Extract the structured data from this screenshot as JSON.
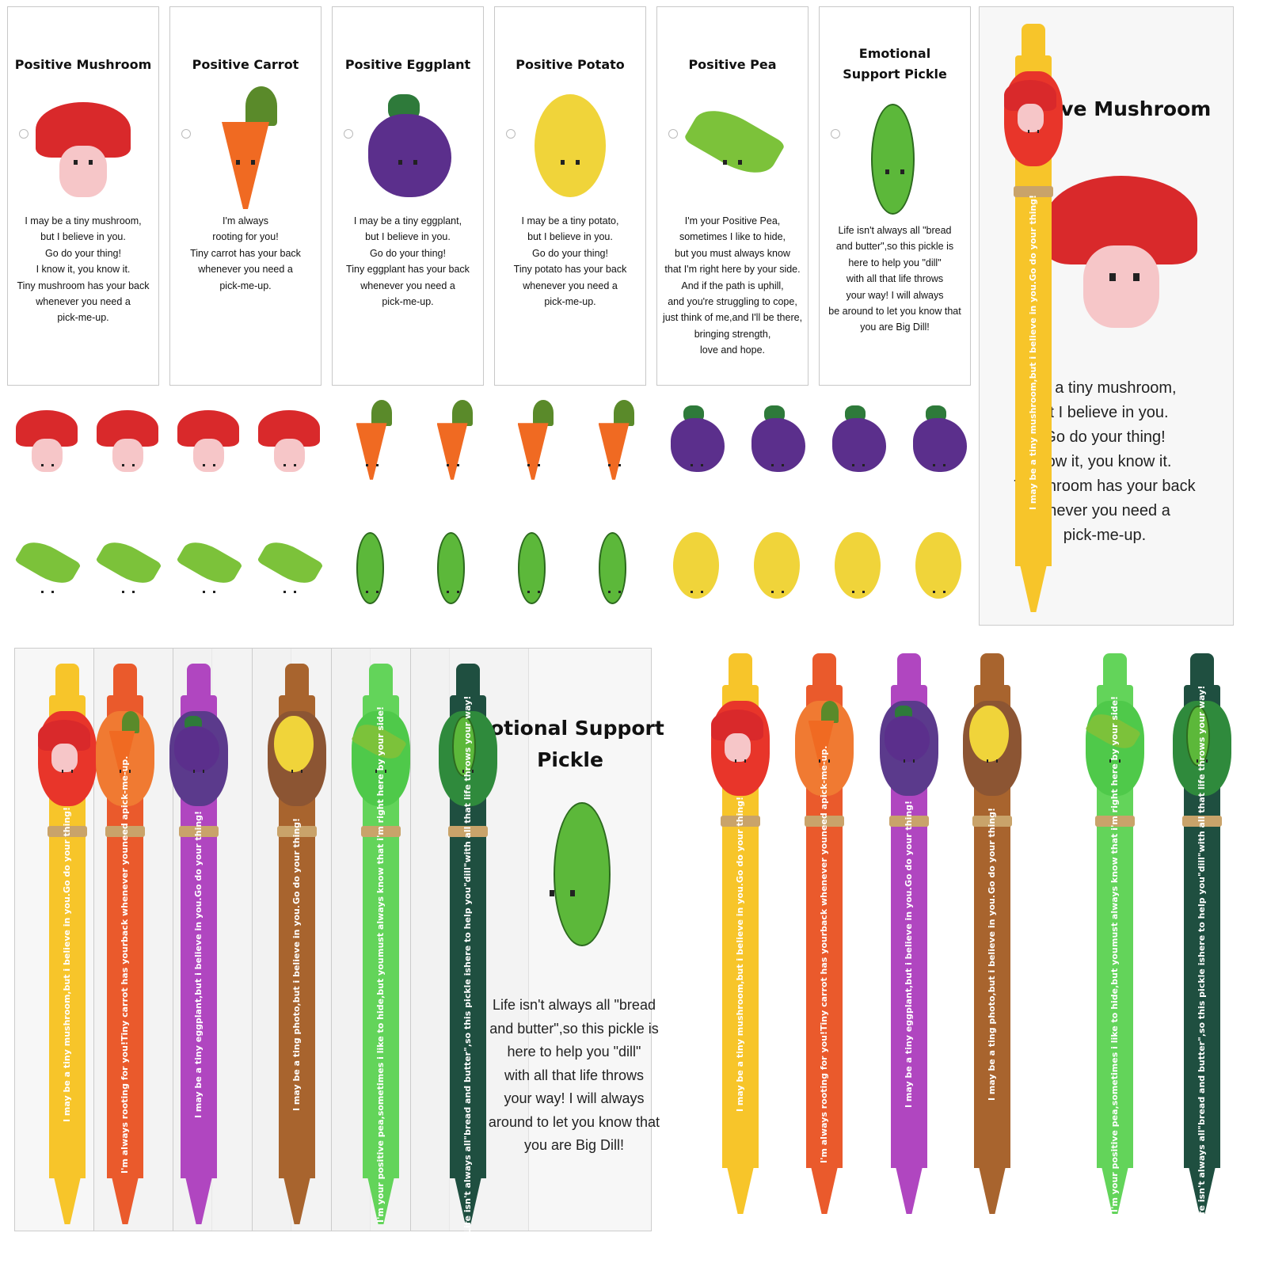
{
  "cards": [
    {
      "title": "Positive Mushroom",
      "art": "mushroom",
      "message": "I may be a tiny mushroom,\nbut I believe in you.\nGo do your thing!\nI know it, you know it.\nTiny mushroom has your back\nwhenever you need a\npick-me-up."
    },
    {
      "title": "Positive Carrot",
      "art": "carrot",
      "message": "I'm always\nrooting for you!\nTiny carrot has your back\nwhenever you need a\npick-me-up."
    },
    {
      "title": "Positive Eggplant",
      "art": "eggplant",
      "message": "I may be a tiny eggplant,\nbut I believe in you.\nGo do your thing!\nTiny  eggplant has your back\nwhenever you need a\npick-me-up."
    },
    {
      "title": "Positive Potato",
      "art": "potato",
      "message": "I may be a tiny potato,\nbut I believe in you.\nGo do your thing!\nTiny  potato has your back\nwhenever you need a\npick-me-up."
    },
    {
      "title": "Positive Pea",
      "art": "pea",
      "message": "I'm your Positive Pea,\nsometimes I like to hide,\nbut you must always know\nthat I'm right here by your side.\nAnd if the path is uphill,\nand you're struggling to cope,\njust think of me,and I'll be there,\nbringing strength,\nlove and hope."
    },
    {
      "title": "Emotional Support Pickle",
      "art": "pickle",
      "message": "Life isn't always all \"bread\nand butter\",so this pickle is\nhere to help you \"dill\"\nwith all that life throws\nyour way! I will always\nbe around to let you know that\nyou are Big Dill!"
    }
  ],
  "packaged_mushroom": {
    "title": "Positive Mushroom",
    "visible_title": "ive Mushroom",
    "visible_text": "be a tiny mushroom,\nut I believe in you.\nGo do your thing!\nnow it, you know it.\nTi   ushroom has your back\nenever you need a\npick-me-up."
  },
  "packaged_pickle": {
    "visible_title": "notional Support\nPickle",
    "visible_text": "Life isn't always all \"bread\nand butter\",so this pickle is\nhere to help you \"dill\"\nwith all that life throws\nyour way! I will always\naround to let you know that\nyou are Big Dill!"
  },
  "pens": [
    {
      "type": "mushroom",
      "color": "#f7c52a",
      "head": "#e8352a",
      "line1": "I may be a tiny mushroom,but i believe in you.",
      "line2": "Go do your thing!"
    },
    {
      "type": "carrot",
      "color": "#ea5a2c",
      "head": "#f07a32",
      "line1": "I'm always rooting for you!Tiny carrot has your",
      "line2": "back whenever youneed apick-me-up."
    },
    {
      "type": "eggplant",
      "color": "#b046c0",
      "head": "#5b3a8c",
      "line1": "I may be a tiny eggplant,but i believe in you.",
      "line2": "Go do your thing!"
    },
    {
      "type": "potato",
      "color": "#a8642e",
      "head": "#8c5533",
      "line1": "I may be a ting photo,but i believe in you.",
      "line2": "Go do your thing!"
    },
    {
      "type": "pea",
      "color": "#63d45a",
      "head": "#4fc94a",
      "line1": "I'm your positive pea,sometimes i like to hide,but you",
      "line2": "must always know that i'm right here by your side!"
    },
    {
      "type": "pickle",
      "color": "#1f4f40",
      "head": "#2f8a3c",
      "line1": "Life isn't always all\"bread and butter\",so this pickle is",
      "line2": "here to help you\"dill\"with all that life throws your way!"
    }
  ],
  "charms": [
    {
      "type": "mushroom",
      "count": 4
    },
    {
      "type": "carrot",
      "count": 4
    },
    {
      "type": "eggplant",
      "count": 4
    },
    {
      "type": "pea",
      "count": 4
    },
    {
      "type": "pickle",
      "count": 4
    },
    {
      "type": "potato",
      "count": 4
    }
  ],
  "colors": {
    "mushroom": "#d9292b",
    "carrot": "#f06a22",
    "eggplant": "#3c2a7a",
    "pea": "#4fa83a",
    "pickle": "#2f8d3a",
    "potato": "#e2a943"
  }
}
